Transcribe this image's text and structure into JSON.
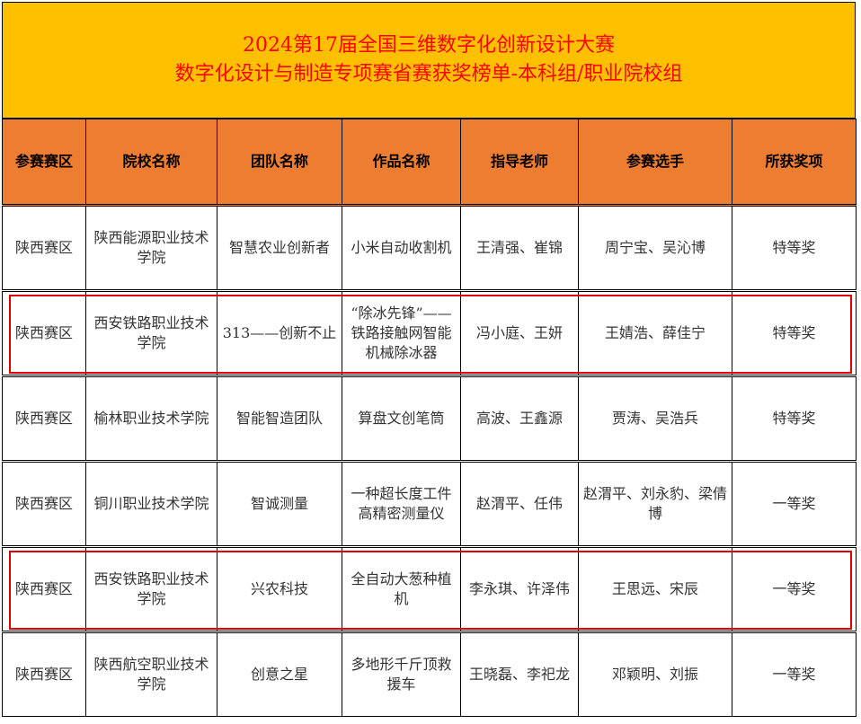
{
  "title": {
    "line1": "2024第17届全国三维数字化创新设计大赛",
    "line2": "数字化设计与制造专项赛省赛获奖榜单-本科组/职业院校组"
  },
  "columns": [
    "参赛赛区",
    "院校名称",
    "团队名称",
    "作品名称",
    "指导老师",
    "参赛选手",
    "所获奖项"
  ],
  "rows": [
    [
      "陕西赛区",
      "陕西能源职业技术学院",
      "智慧农业创新者",
      "小米自动收割机",
      "王清强、崔锦",
      "周宁宝、吴沁博",
      "特等奖"
    ],
    [
      "陕西赛区",
      "西安铁路职业技术学院",
      "313——创新不止",
      "“除冰先锋”——铁路接触网智能机械除冰器",
      "冯小庭、王妍",
      "王婧浩、薛佳宁",
      "特等奖"
    ],
    [
      "陕西赛区",
      "榆林职业技术学院",
      "智能智造团队",
      "算盘文创笔筒",
      "高波、王鑫源",
      "贾涛、吴浩兵",
      "特等奖"
    ],
    [
      "陕西赛区",
      "铜川职业技术学院",
      "智诚测量",
      "一种超长度工件高精密测量仪",
      "赵渭平、任伟",
      "赵渭平、刘永豹、梁倩博",
      "一等奖"
    ],
    [
      "陕西赛区",
      "西安铁路职业技术学院",
      "兴农科技",
      "全自动大葱种植机",
      "李永琪、许泽伟",
      "王思远、宋辰",
      "一等奖"
    ],
    [
      "陕西赛区",
      "陕西航空职业技术学院",
      "创意之星",
      "多地形千斤顶救援车",
      "王晓磊、李祀龙",
      "邓颖明、刘振",
      "一等奖"
    ]
  ],
  "highlighted_rows": [
    2,
    5
  ],
  "colors": {
    "title_bg": "#FFC000",
    "title_text": "#FF0000",
    "header_bg": "#ED7D31",
    "highlight": "#E00000"
  }
}
